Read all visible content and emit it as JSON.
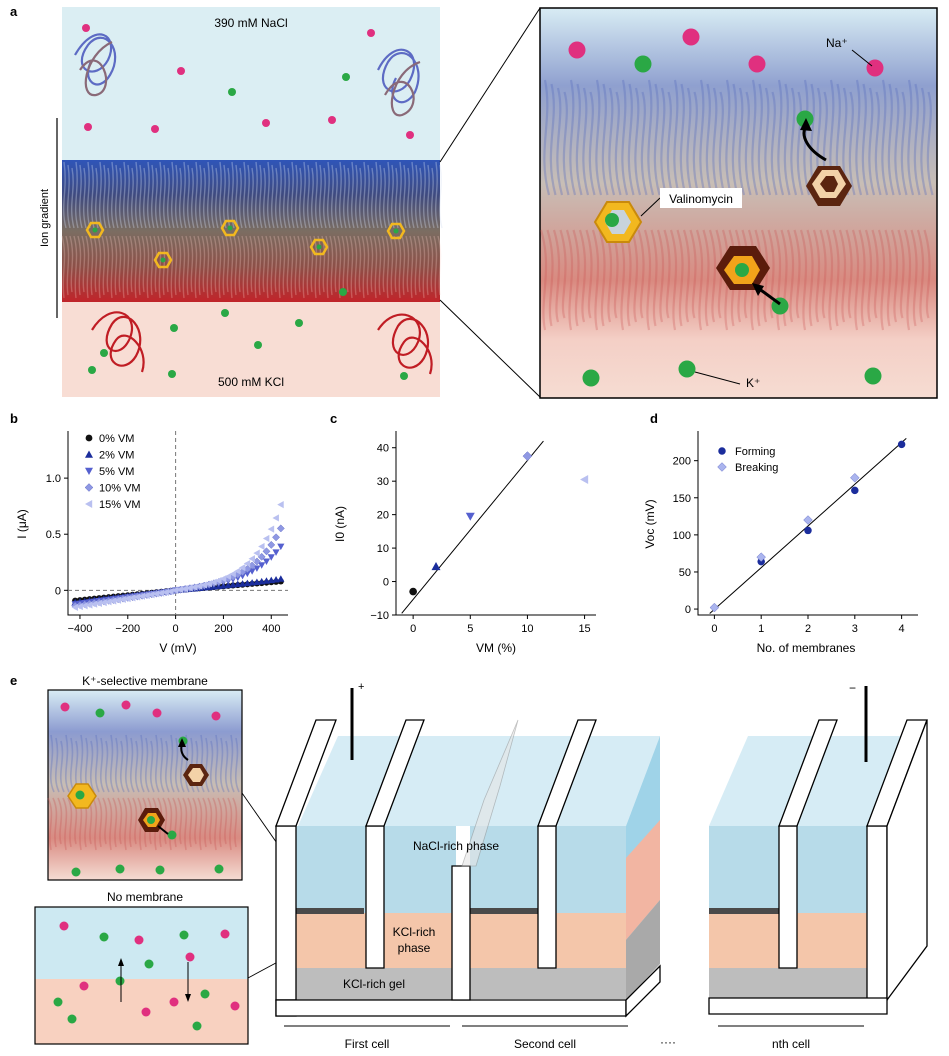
{
  "panel_letters": [
    "a",
    "b",
    "c",
    "d",
    "e"
  ],
  "panel_a": {
    "top_solution": "390 mM NaCl",
    "bottom_solution": "500 mM KCl",
    "gradient_label": "Ion gradient",
    "na_label": "Na⁺",
    "k_label": "K⁺",
    "carrier_label": "Valinomycin"
  },
  "chart_data": [
    {
      "type": "scatter",
      "panel": "b",
      "xlabel": "V (mV)",
      "ylabel": "I (μA)",
      "xlim": [
        -450,
        470
      ],
      "ylim": [
        -0.22,
        1.42
      ],
      "xticks": [
        "−400",
        "−200",
        "0",
        "200",
        "400"
      ],
      "yticks": [
        "0",
        "0.5",
        "1.0"
      ],
      "legend_position": "top-left",
      "series": [
        {
          "name": "0% VM",
          "marker": "circle",
          "color": "#111111",
          "k": 0.055,
          "b": 0.0
        },
        {
          "name": "2% VM",
          "marker": "triangle-up",
          "color": "#1b2d9c",
          "k": 0.055,
          "b": 0.0022
        },
        {
          "name": "5% VM",
          "marker": "triangle-down",
          "color": "#5560cf",
          "k": 0.08,
          "b": 0.0095
        },
        {
          "name": "10% VM",
          "marker": "diamond",
          "color": "#8f98e3",
          "k": 0.085,
          "b": 0.0115
        },
        {
          "name": "15% VM",
          "marker": "triangle-left",
          "color": "#b9c0f0",
          "k": 0.09,
          "b": 0.0133
        }
      ]
    },
    {
      "type": "scatter",
      "panel": "c",
      "xlabel": "VM (%)",
      "ylabel": "I0 (nA)",
      "xlim": [
        -1.5,
        16
      ],
      "ylim": [
        -10,
        45
      ],
      "xticks": [
        "0",
        "5",
        "10",
        "15"
      ],
      "yticks": [
        "−10",
        "0",
        "10",
        "20",
        "30",
        "40"
      ],
      "points": [
        {
          "x": 0,
          "y": -3,
          "marker": "circle",
          "color": "#111111"
        },
        {
          "x": 2,
          "y": 4.5,
          "marker": "triangle-up",
          "color": "#1b2d9c"
        },
        {
          "x": 5,
          "y": 19.5,
          "marker": "triangle-down",
          "color": "#5560cf"
        },
        {
          "x": 10,
          "y": 37.5,
          "marker": "diamond",
          "color": "#8f98e3"
        },
        {
          "x": 15,
          "y": 30.5,
          "marker": "triangle-left",
          "color": "#b9c0f0"
        }
      ],
      "fit": [
        [
          -1,
          -9.5
        ],
        [
          11.4,
          42
        ]
      ]
    },
    {
      "type": "scatter",
      "panel": "d",
      "xlabel": "No. of membranes",
      "ylabel": "Voc (mV)",
      "xlim": [
        -0.35,
        4.35
      ],
      "ylim": [
        -8,
        240
      ],
      "xticks": [
        "0",
        "1",
        "2",
        "3",
        "4"
      ],
      "yticks": [
        "0",
        "50",
        "100",
        "150",
        "200"
      ],
      "legend_position": "top-left",
      "series": [
        {
          "name": "Forming",
          "marker": "circle",
          "color": "#1b2d9c",
          "points": [
            [
              1,
              64
            ],
            [
              2,
              106
            ],
            [
              3,
              160
            ],
            [
              4,
              222
            ]
          ]
        },
        {
          "name": "Breaking",
          "marker": "diamond",
          "color": "#aab4ee",
          "points": [
            [
              0,
              2
            ],
            [
              1,
              70
            ],
            [
              2,
              120
            ],
            [
              3,
              177
            ]
          ]
        }
      ],
      "fit": [
        [
          -0.1,
          -6
        ],
        [
          4.1,
          230
        ]
      ]
    }
  ],
  "panel_e": {
    "inset_top_title": "K⁺-selective membrane",
    "inset_bottom_title": "No membrane",
    "electrode_plus": "+",
    "electrode_minus": "−",
    "phase_top": "NaCl-rich phase",
    "phase_middle_line1": "KCl-rich",
    "phase_middle_line2": "phase",
    "gel": "KCl-rich gel",
    "cell_labels": [
      "First cell",
      "Second cell",
      "nth cell"
    ],
    "ellipsis": "····"
  }
}
